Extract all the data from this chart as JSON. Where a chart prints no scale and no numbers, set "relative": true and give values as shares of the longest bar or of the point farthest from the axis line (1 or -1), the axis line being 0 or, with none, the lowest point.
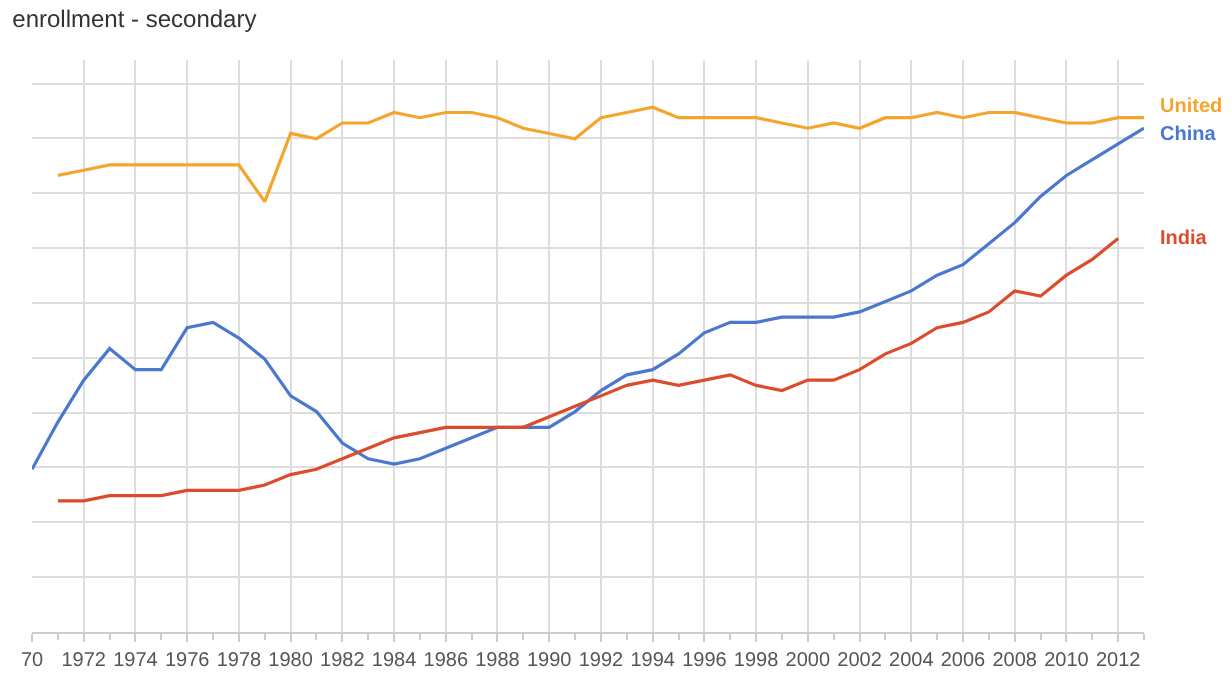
{
  "chart_data": {
    "type": "line",
    "title": "enrollment - secondary",
    "relative": true,
    "grid": true,
    "legend": false,
    "marker": "none",
    "line_style": "solid",
    "tick_labels": "x",
    "x": [
      1970,
      1971,
      1972,
      1973,
      1974,
      1975,
      1976,
      1977,
      1978,
      1979,
      1980,
      1981,
      1982,
      1983,
      1984,
      1985,
      1986,
      1987,
      1988,
      1989,
      1990,
      1991,
      1992,
      1993,
      1994,
      1995,
      1996,
      1997,
      1998,
      1999,
      2000,
      2001,
      2002,
      2003,
      2004,
      2005,
      2006,
      2007,
      2008,
      2009,
      2010,
      2011,
      2012,
      2013
    ],
    "xlim": [
      1970,
      2013
    ],
    "xticks": [
      {
        "value": 1970,
        "label": "70"
      },
      1972,
      1974,
      1976,
      1978,
      1980,
      1982,
      1984,
      1986,
      1988,
      1990,
      1992,
      1994,
      1996,
      1998,
      2000,
      2002,
      2004,
      2006,
      2008,
      2010,
      2012
    ],
    "series": [
      {
        "name": "United",
        "color": "#f5a52e",
        "values": [
          null,
          0.87,
          0.88,
          0.89,
          0.89,
          0.89,
          0.89,
          0.89,
          0.89,
          0.82,
          0.95,
          0.94,
          0.97,
          0.97,
          0.99,
          0.98,
          0.99,
          0.99,
          0.98,
          0.96,
          0.95,
          0.94,
          0.98,
          0.99,
          1,
          0.98,
          0.98,
          0.98,
          0.98,
          0.97,
          0.96,
          0.97,
          0.96,
          0.98,
          0.98,
          0.99,
          0.98,
          0.99,
          0.99,
          0.98,
          0.97,
          0.97,
          0.98,
          0.98
        ]
      },
      {
        "name": "China",
        "color": "#4a78cf",
        "values": [
          0.31,
          0.4,
          0.48,
          0.54,
          0.5,
          0.5,
          0.58,
          0.59,
          0.56,
          0.52,
          0.45,
          0.42,
          0.36,
          0.33,
          0.32,
          0.33,
          0.35,
          0.37,
          0.39,
          0.39,
          0.39,
          0.42,
          0.46,
          0.49,
          0.5,
          0.53,
          0.57,
          0.59,
          0.59,
          0.6,
          0.6,
          0.6,
          0.61,
          0.63,
          0.65,
          0.68,
          0.7,
          0.74,
          0.78,
          0.83,
          0.87,
          0.9,
          0.93,
          0.96
        ]
      },
      {
        "name": "India",
        "color": "#dc4b2c",
        "values": [
          null,
          0.25,
          0.25,
          0.26,
          0.26,
          0.26,
          0.27,
          0.27,
          0.27,
          0.28,
          0.3,
          0.31,
          0.33,
          0.35,
          0.37,
          0.38,
          0.39,
          0.39,
          0.39,
          0.39,
          0.41,
          0.43,
          0.45,
          0.47,
          0.48,
          0.47,
          0.48,
          0.49,
          0.47,
          0.46,
          0.48,
          0.48,
          0.5,
          0.53,
          0.55,
          0.58,
          0.59,
          0.61,
          0.65,
          0.64,
          0.68,
          0.71,
          0.75,
          null
        ]
      }
    ]
  }
}
